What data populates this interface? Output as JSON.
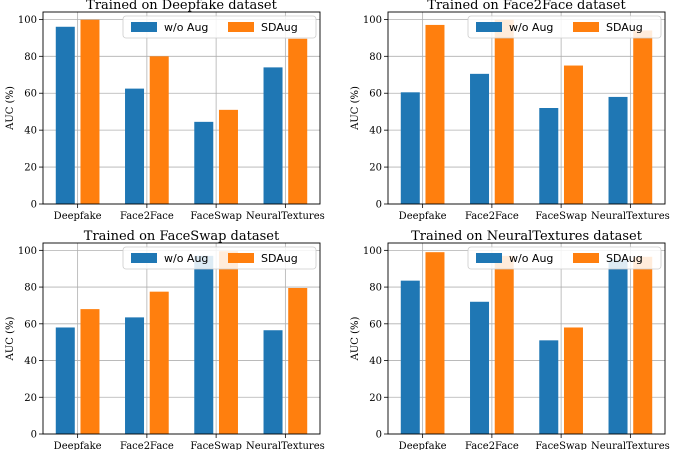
{
  "colors": {
    "woaug": "#1f77b4",
    "sdaug": "#ff7f0e",
    "grid": "#b0b0b0"
  },
  "chart_data": [
    {
      "type": "bar",
      "title": "Trained on Deepfake dataset",
      "categories": [
        "Deepfake",
        "Face2Face",
        "FaceSwap",
        "NeuralTextures"
      ],
      "series": [
        {
          "name": "w/o Aug",
          "values": [
            96,
            62.5,
            44.5,
            74
          ]
        },
        {
          "name": "SDAug",
          "values": [
            99.8,
            80,
            51,
            89.5
          ]
        }
      ],
      "xlabel": "",
      "ylabel": "AUC (%)",
      "ylim": [
        0,
        104
      ],
      "yticks": [
        0,
        20,
        40,
        60,
        80,
        100
      ],
      "grid": true,
      "legend": "top-right"
    },
    {
      "type": "bar",
      "title": "Trained on Face2Face dataset",
      "categories": [
        "Deepfake",
        "Face2Face",
        "FaceSwap",
        "NeuralTextures"
      ],
      "series": [
        {
          "name": "w/o Aug",
          "values": [
            60.5,
            70.5,
            52,
            58
          ]
        },
        {
          "name": "SDAug",
          "values": [
            97,
            99.8,
            75,
            94
          ]
        }
      ],
      "xlabel": "",
      "ylabel": "AUC (%)",
      "ylim": [
        0,
        104
      ],
      "yticks": [
        0,
        20,
        40,
        60,
        80,
        100
      ],
      "grid": true,
      "legend": "top-right"
    },
    {
      "type": "bar",
      "title": "Trained on FaceSwap dataset",
      "categories": [
        "Deepfake",
        "Face2Face",
        "FaceSwap",
        "NeuralTextures"
      ],
      "series": [
        {
          "name": "w/o Aug",
          "values": [
            58,
            63.5,
            97,
            56.5
          ]
        },
        {
          "name": "SDAug",
          "values": [
            68,
            77.5,
            99.5,
            79.5
          ]
        }
      ],
      "xlabel": "",
      "ylabel": "AUC (%)",
      "ylim": [
        0,
        104
      ],
      "yticks": [
        0,
        20,
        40,
        60,
        80,
        100
      ],
      "grid": true,
      "legend": "top-right"
    },
    {
      "type": "bar",
      "title": "Trained on NeuralTextures dataset",
      "categories": [
        "Deepfake",
        "Face2Face",
        "FaceSwap",
        "NeuralTextures"
      ],
      "series": [
        {
          "name": "w/o Aug",
          "values": [
            83.5,
            72,
            51,
            95
          ]
        },
        {
          "name": "SDAug",
          "values": [
            99,
            97,
            58,
            96.5
          ]
        }
      ],
      "xlabel": "",
      "ylabel": "AUC (%)",
      "ylim": [
        0,
        104
      ],
      "yticks": [
        0,
        20,
        40,
        60,
        80,
        100
      ],
      "grid": true,
      "legend": "top-right"
    }
  ]
}
